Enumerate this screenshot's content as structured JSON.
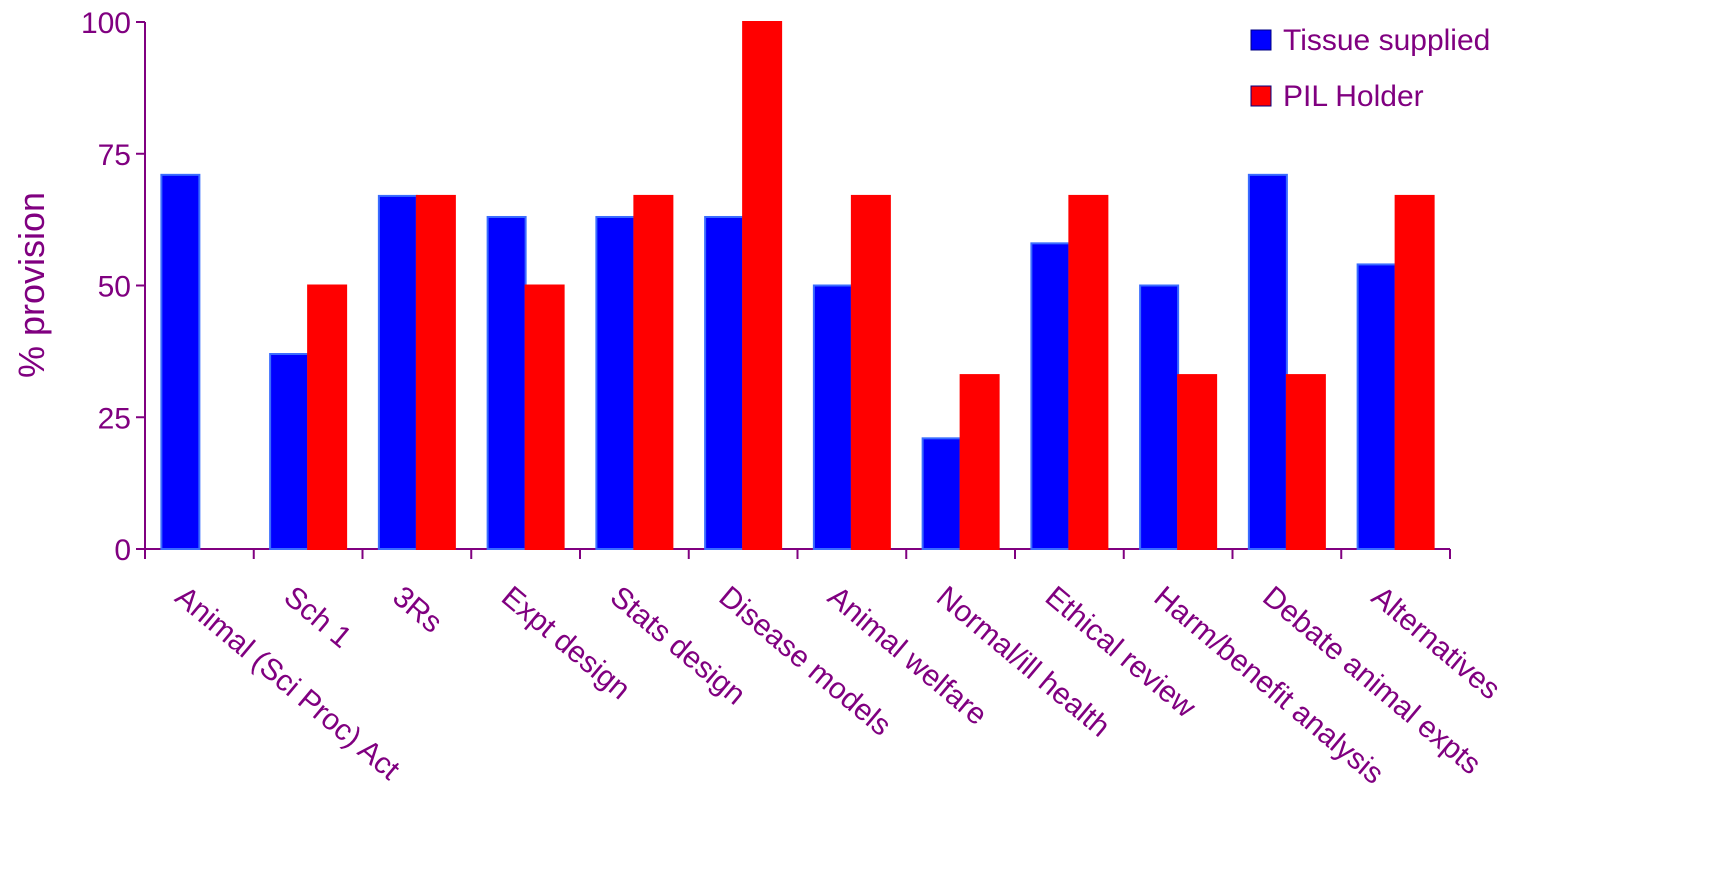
{
  "chart_data": {
    "type": "bar",
    "title": "",
    "xlabel": "",
    "ylabel": "% provision",
    "ylim": [
      0,
      100
    ],
    "yticks": [
      0,
      25,
      50,
      75,
      100
    ],
    "grid": false,
    "legend_position": "top-right",
    "categories": [
      "Animal (Sci Proc) Act",
      "Sch 1",
      "3Rs",
      "Expt design",
      "Stats design",
      "Disease models",
      "Animal welfare",
      "Normal/ill health",
      "Ethical review",
      "Harm/benefit analysis",
      "Debate animal expts",
      "Alternatives"
    ],
    "series": [
      {
        "name": "Tissue supplied",
        "color": "#0000ff",
        "values": [
          71,
          37,
          67,
          63,
          63,
          63,
          50,
          21,
          58,
          50,
          71,
          54
        ]
      },
      {
        "name": "PIL Holder",
        "color": "#ff0000",
        "values": [
          0,
          50,
          67,
          50,
          67,
          100,
          67,
          33,
          67,
          33,
          33,
          67
        ]
      }
    ],
    "colors": {
      "axis": "#800080",
      "text": "#800080",
      "bar_edge": "#3a6cff"
    }
  }
}
